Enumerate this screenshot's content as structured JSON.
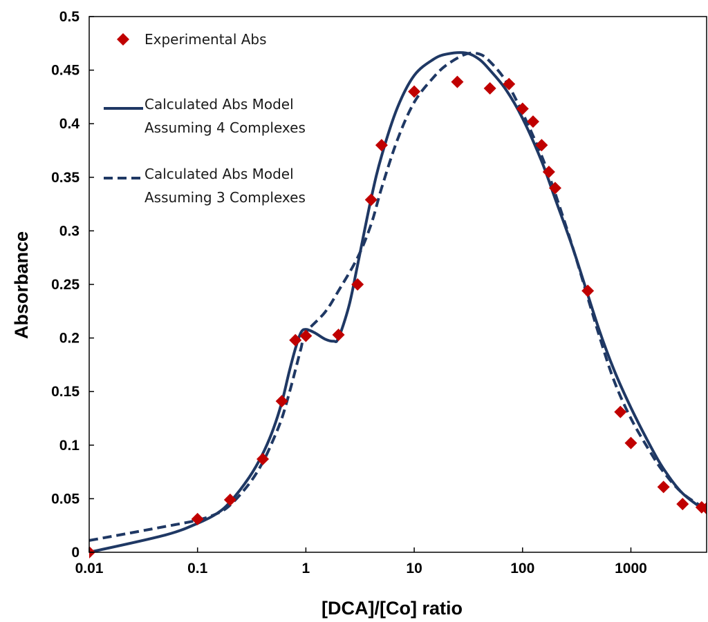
{
  "chart_data": {
    "type": "scatter",
    "xlabel": "[DCA]/[Co] ratio",
    "ylabel": "Absorbance",
    "xscale": "log",
    "xlim": [
      0.01,
      5000
    ],
    "ylim": [
      0,
      0.5
    ],
    "grid": false,
    "legend_position": "top-left",
    "x_tick_labels": [
      "0.01",
      "0.1",
      "1",
      "10",
      "100",
      "1000"
    ],
    "y_tick_labels": [
      "0",
      "0.05",
      "0.1",
      "0.15",
      "0.2",
      "0.25",
      "0.3",
      "0.35",
      "0.4",
      "0.45",
      "0.5"
    ],
    "legend": [
      {
        "lines": [
          "Experimental Abs"
        ]
      },
      {
        "lines": [
          "Calculated Abs Model",
          "Assuming 4 Complexes"
        ]
      },
      {
        "lines": [
          "Calculated Abs Model",
          "Assuming 3 Complexes"
        ]
      }
    ],
    "series": [
      {
        "kind": "markers",
        "marker": "diamond",
        "color": "#c00000",
        "x": [
          0.01,
          0.1,
          0.2,
          0.4,
          0.6,
          0.8,
          1,
          2,
          3,
          4,
          5,
          10,
          25,
          50,
          75,
          100,
          125,
          150,
          175,
          200,
          400,
          800,
          1000,
          2000,
          3000,
          4500,
          5000
        ],
        "y": [
          0.0,
          0.031,
          0.049,
          0.087,
          0.141,
          0.198,
          0.202,
          0.203,
          0.25,
          0.329,
          0.38,
          0.43,
          0.439,
          0.433,
          0.437,
          0.414,
          0.402,
          0.38,
          0.355,
          0.34,
          0.244,
          0.131,
          0.102,
          0.061,
          0.045,
          0.042,
          0.041
        ]
      },
      {
        "kind": "line",
        "style": "solid",
        "color": "#1f3864",
        "x": [
          0.01,
          0.05,
          0.1,
          0.15,
          0.2,
          0.3,
          0.4,
          0.5,
          0.6,
          0.7,
          0.8,
          0.9,
          1.0,
          1.2,
          1.5,
          1.8,
          2.0,
          2.5,
          3.0,
          4.0,
          5.0,
          7.0,
          10,
          15,
          20,
          30,
          40,
          50,
          70,
          100,
          150,
          200,
          300,
          500,
          700,
          1000,
          1500,
          2000,
          3000,
          5000
        ],
        "y": [
          0.0,
          0.016,
          0.027,
          0.036,
          0.047,
          0.07,
          0.092,
          0.115,
          0.14,
          0.168,
          0.19,
          0.205,
          0.208,
          0.205,
          0.199,
          0.197,
          0.2,
          0.23,
          0.268,
          0.33,
          0.37,
          0.415,
          0.445,
          0.46,
          0.465,
          0.466,
          0.46,
          0.45,
          0.432,
          0.405,
          0.365,
          0.33,
          0.28,
          0.21,
          0.17,
          0.135,
          0.1,
          0.078,
          0.055,
          0.038
        ]
      },
      {
        "kind": "line",
        "style": "dashed",
        "color": "#1f3864",
        "x": [
          0.01,
          0.05,
          0.1,
          0.15,
          0.2,
          0.3,
          0.4,
          0.5,
          0.6,
          0.7,
          0.8,
          0.9,
          1.0,
          1.5,
          2.0,
          3.0,
          4.0,
          5.0,
          7.0,
          10,
          15,
          20,
          30,
          40,
          50,
          70,
          100,
          150,
          200,
          300,
          500,
          700,
          1000,
          1500,
          2000,
          3000,
          5000
        ],
        "y": [
          0.011,
          0.024,
          0.03,
          0.036,
          0.044,
          0.064,
          0.084,
          0.105,
          0.125,
          0.148,
          0.17,
          0.19,
          0.205,
          0.224,
          0.244,
          0.275,
          0.306,
          0.34,
          0.385,
          0.42,
          0.443,
          0.455,
          0.465,
          0.465,
          0.458,
          0.44,
          0.41,
          0.37,
          0.335,
          0.28,
          0.205,
          0.16,
          0.125,
          0.094,
          0.075,
          0.055,
          0.04
        ]
      }
    ]
  }
}
